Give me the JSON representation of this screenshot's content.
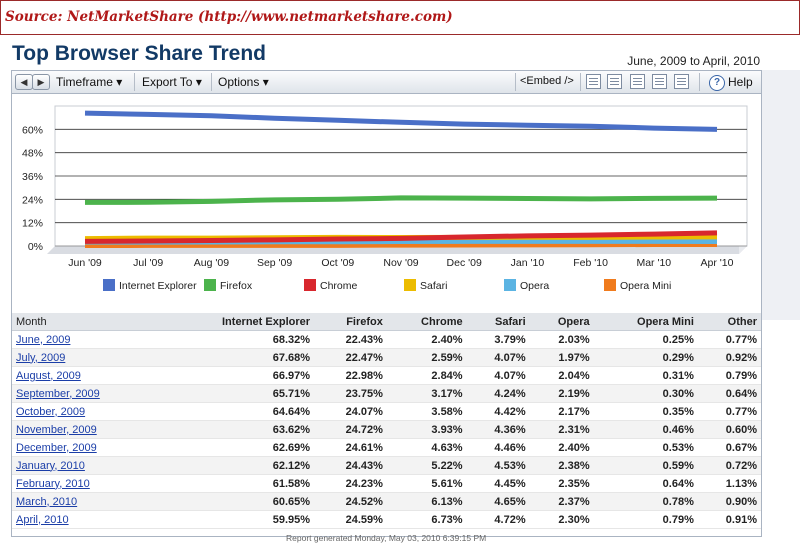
{
  "source": "Source: NetMarketShare (http://www.netmarketshare.com)",
  "title": "Top Browser Share Trend",
  "date_range": "June, 2009 to April, 2010",
  "toolbar": {
    "timeframe": "Timeframe",
    "export": "Export To",
    "options": "Options",
    "embed": "<Embed />",
    "help": "Help"
  },
  "colors": {
    "Internet Explorer": "#4a6fc7",
    "Firefox": "#4cb34c",
    "Chrome": "#d8272d",
    "Safari": "#ecbc00",
    "Opera": "#5bb4e3",
    "Opera Mini": "#f07b1d"
  },
  "chart_data": {
    "type": "line",
    "title": "Top Browser Share Trend",
    "x": [
      "Jun '09",
      "Jul '09",
      "Aug '09",
      "Sep '09",
      "Oct '09",
      "Nov '09",
      "Dec '09",
      "Jan '10",
      "Feb '10",
      "Mar '10",
      "Apr '10"
    ],
    "y_ticks": [
      "0%",
      "12%",
      "24%",
      "36%",
      "48%",
      "60%"
    ],
    "ylim": [
      0,
      72
    ],
    "legend_position": "bottom",
    "series": [
      {
        "name": "Internet Explorer",
        "values": [
          68.32,
          67.68,
          66.97,
          65.71,
          64.64,
          63.62,
          62.69,
          62.12,
          61.58,
          60.65,
          59.95
        ]
      },
      {
        "name": "Firefox",
        "values": [
          22.43,
          22.47,
          22.98,
          23.75,
          24.07,
          24.72,
          24.61,
          24.43,
          24.23,
          24.52,
          24.59
        ]
      },
      {
        "name": "Chrome",
        "values": [
          2.4,
          2.59,
          2.84,
          3.17,
          3.58,
          3.93,
          4.63,
          5.22,
          5.61,
          6.13,
          6.73
        ]
      },
      {
        "name": "Safari",
        "values": [
          3.79,
          4.07,
          4.07,
          4.24,
          4.42,
          4.36,
          4.46,
          4.53,
          4.45,
          4.65,
          4.72
        ]
      },
      {
        "name": "Opera",
        "values": [
          2.03,
          1.97,
          2.04,
          2.19,
          2.17,
          2.31,
          2.4,
          2.38,
          2.35,
          2.37,
          2.3
        ]
      },
      {
        "name": "Opera Mini",
        "values": [
          0.25,
          0.29,
          0.31,
          0.3,
          0.35,
          0.46,
          0.53,
          0.59,
          0.64,
          0.78,
          0.79
        ]
      }
    ]
  },
  "table": {
    "headers": [
      "Month",
      "Internet Explorer",
      "Firefox",
      "Chrome",
      "Safari",
      "Opera",
      "Opera Mini",
      "Other"
    ],
    "rows": [
      [
        "June, 2009",
        "68.32%",
        "22.43%",
        "2.40%",
        "3.79%",
        "2.03%",
        "0.25%",
        "0.77%"
      ],
      [
        "July, 2009",
        "67.68%",
        "22.47%",
        "2.59%",
        "4.07%",
        "1.97%",
        "0.29%",
        "0.92%"
      ],
      [
        "August, 2009",
        "66.97%",
        "22.98%",
        "2.84%",
        "4.07%",
        "2.04%",
        "0.31%",
        "0.79%"
      ],
      [
        "September, 2009",
        "65.71%",
        "23.75%",
        "3.17%",
        "4.24%",
        "2.19%",
        "0.30%",
        "0.64%"
      ],
      [
        "October, 2009",
        "64.64%",
        "24.07%",
        "3.58%",
        "4.42%",
        "2.17%",
        "0.35%",
        "0.77%"
      ],
      [
        "November, 2009",
        "63.62%",
        "24.72%",
        "3.93%",
        "4.36%",
        "2.31%",
        "0.46%",
        "0.60%"
      ],
      [
        "December, 2009",
        "62.69%",
        "24.61%",
        "4.63%",
        "4.46%",
        "2.40%",
        "0.53%",
        "0.67%"
      ],
      [
        "January, 2010",
        "62.12%",
        "24.43%",
        "5.22%",
        "4.53%",
        "2.38%",
        "0.59%",
        "0.72%"
      ],
      [
        "February, 2010",
        "61.58%",
        "24.23%",
        "5.61%",
        "4.45%",
        "2.35%",
        "0.64%",
        "1.13%"
      ],
      [
        "March, 2010",
        "60.65%",
        "24.52%",
        "6.13%",
        "4.65%",
        "2.37%",
        "0.78%",
        "0.90%"
      ],
      [
        "April, 2010",
        "59.95%",
        "24.59%",
        "6.73%",
        "4.72%",
        "2.30%",
        "0.79%",
        "0.91%"
      ]
    ]
  },
  "footer": "Report generated Monday, May 03, 2010 6:39:15 PM"
}
